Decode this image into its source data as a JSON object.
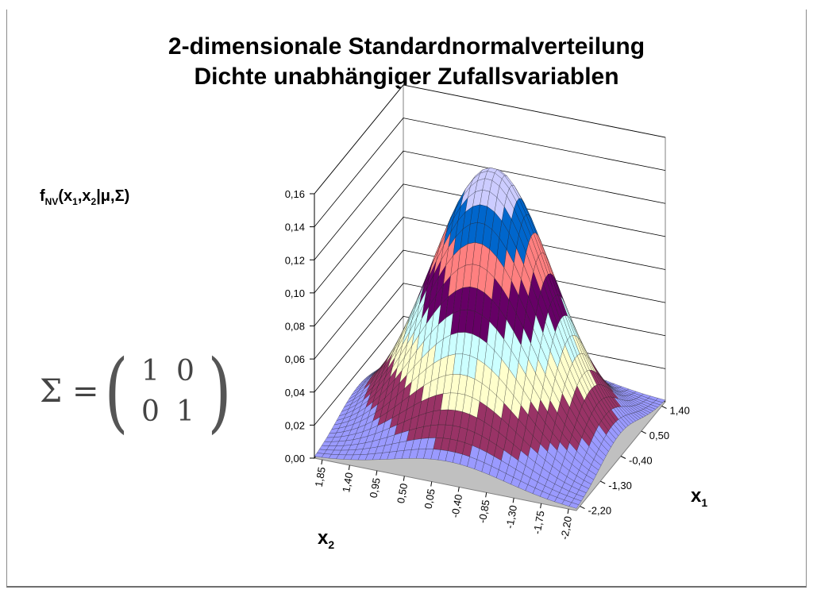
{
  "chart_data": {
    "type": "surface",
    "title": "2-dimensionale Standardnormalverteilung",
    "subtitle": "Dichte unabhängiger Zufallsvariablen",
    "zlabel": {
      "base": "f",
      "sub": "NV",
      "args": "(x",
      "a1": "1",
      "c1": ",x",
      "a2": "2",
      "rest": "|μ,Σ)"
    },
    "xlabel": {
      "base": "x",
      "sub": "1"
    },
    "ylabel": {
      "base": "x",
      "sub": "2"
    },
    "z_ticks": [
      "0,00",
      "0,02",
      "0,04",
      "0,06",
      "0,08",
      "0,10",
      "0,12",
      "0,14",
      "0,16"
    ],
    "z_range": [
      0,
      0.16
    ],
    "x1_ticks": [
      "1,40",
      "0,50",
      "-0,40",
      "-1,30",
      "-2,20"
    ],
    "x2_ticks": [
      "1,85",
      "1,40",
      "0,95",
      "0,50",
      "0,05",
      "-0,40",
      "-0,85",
      "-1,30",
      "-1,75",
      "-2,20"
    ],
    "x_range": [
      -2.2,
      2.3
    ],
    "peak": {
      "x1": 0,
      "x2": 0,
      "z": 0.159
    },
    "band_colors": [
      "#9a9aff",
      "#993366",
      "#ffffcc",
      "#ccffff",
      "#660066",
      "#ff8080",
      "#0066cc",
      "#ccccff"
    ],
    "band_step": 0.02,
    "covariance": {
      "symbol": "Σ =",
      "rows": [
        [
          "1",
          "0"
        ],
        [
          "0",
          "1"
        ]
      ]
    }
  }
}
